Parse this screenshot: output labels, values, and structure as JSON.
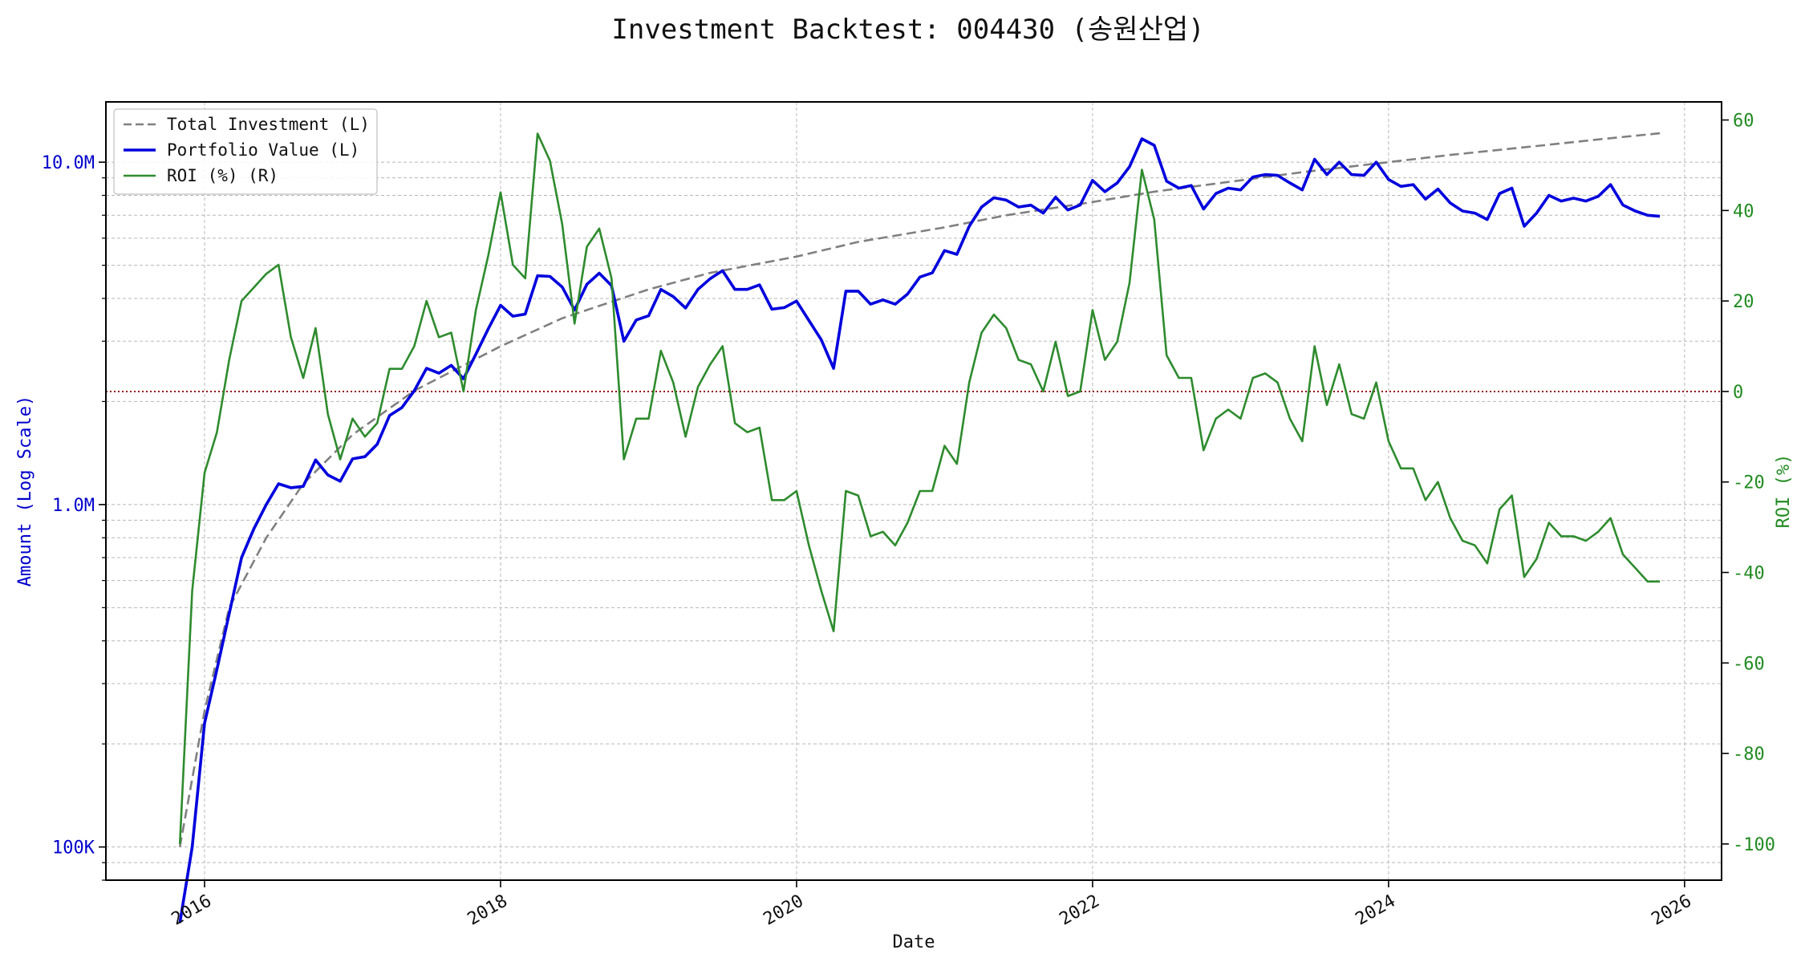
{
  "chart_data": {
    "type": "line",
    "title": "Investment Backtest: 004430 (송원산업)",
    "xlabel": "Date",
    "ylabel_left": "Amount (Log Scale)",
    "ylabel_right": "ROI (%)",
    "y_left_scale": "log",
    "y_left_range": [
      80000,
      15000000
    ],
    "y_left_ticks": [
      {
        "value": 100000,
        "label": "100K"
      },
      {
        "value": 1000000,
        "label": "1.0M"
      },
      {
        "value": 10000000,
        "label": "10.0M"
      }
    ],
    "y_right_range": [
      -108,
      64
    ],
    "y_right_ticks": [
      -100,
      -80,
      -60,
      -40,
      -20,
      0,
      20,
      40,
      60
    ],
    "x_range": [
      "2015-05-01",
      "2026-04-01"
    ],
    "x_ticks": [
      "2016",
      "2018",
      "2020",
      "2022",
      "2024",
      "2026"
    ],
    "grid": true,
    "legend_position": "top-left",
    "zero_reference_line": {
      "axis": "right",
      "value": 0,
      "color": "#8b0000",
      "style": "dotted"
    },
    "colors": {
      "total_investment": "#808080",
      "portfolio_value": "#0000dd",
      "roi": "#2e8b2e",
      "left_axis": "#0000cc",
      "right_axis": "#228b22"
    },
    "series": [
      {
        "name": "Total Investment (L)",
        "axis": "left",
        "style": "dashed",
        "color": "#808080",
        "x": [
          "2015-11",
          "2016-01",
          "2016-03",
          "2016-06",
          "2016-09",
          "2017-01",
          "2017-06",
          "2018-01",
          "2018-06",
          "2019-01",
          "2019-06",
          "2020-01",
          "2020-06",
          "2021-01",
          "2021-06",
          "2022-01",
          "2022-06",
          "2023-01",
          "2023-06",
          "2024-01",
          "2024-06",
          "2025-01",
          "2025-06",
          "2025-11"
        ],
        "values": [
          100000,
          250000,
          500000,
          800000,
          1150000,
          1600000,
          2150000,
          2900000,
          3500000,
          4250000,
          4750000,
          5300000,
          5850000,
          6450000,
          7000000,
          7650000,
          8200000,
          8850000,
          9350000,
          10000000,
          10500000,
          11150000,
          11650000,
          12150000
        ]
      },
      {
        "name": "Portfolio Value (L)",
        "axis": "left",
        "style": "solid",
        "color": "#0000dd",
        "x": [
          "2015-11",
          "2015-12",
          "2016-01",
          "2016-02",
          "2016-03",
          "2016-04",
          "2016-05",
          "2016-06",
          "2016-07",
          "2016-08",
          "2016-09",
          "2016-10",
          "2016-11",
          "2016-12",
          "2017-01",
          "2017-02",
          "2017-03",
          "2017-04",
          "2017-05",
          "2017-06",
          "2017-07",
          "2017-08",
          "2017-09",
          "2017-10",
          "2017-11",
          "2017-12",
          "2018-01",
          "2018-02",
          "2018-03",
          "2018-04",
          "2018-05",
          "2018-06",
          "2018-07",
          "2018-08",
          "2018-09",
          "2018-10",
          "2018-11",
          "2018-12",
          "2019-01",
          "2019-02",
          "2019-03",
          "2019-04",
          "2019-05",
          "2019-06",
          "2019-07",
          "2019-08",
          "2019-09",
          "2019-10",
          "2019-11",
          "2019-12",
          "2020-01",
          "2020-02",
          "2020-03",
          "2020-04",
          "2020-05",
          "2020-06",
          "2020-07",
          "2020-08",
          "2020-09",
          "2020-10",
          "2020-11",
          "2020-12",
          "2021-01",
          "2021-02",
          "2021-03",
          "2021-04",
          "2021-05",
          "2021-06",
          "2021-07",
          "2021-08",
          "2021-09",
          "2021-10",
          "2021-11",
          "2021-12",
          "2022-01",
          "2022-02",
          "2022-03",
          "2022-04",
          "2022-05",
          "2022-06",
          "2022-07",
          "2022-08",
          "2022-09",
          "2022-10",
          "2022-11",
          "2022-12",
          "2023-01",
          "2023-02",
          "2023-03",
          "2023-04",
          "2023-05",
          "2023-06",
          "2023-07",
          "2023-08",
          "2023-09",
          "2023-10",
          "2023-11",
          "2023-12",
          "2024-01",
          "2024-02",
          "2024-03",
          "2024-04",
          "2024-05",
          "2024-06",
          "2024-07",
          "2024-08",
          "2024-09",
          "2024-10",
          "2024-11",
          "2024-12",
          "2025-01",
          "2025-02",
          "2025-03",
          "2025-04",
          "2025-05",
          "2025-06",
          "2025-07",
          "2025-08",
          "2025-09",
          "2025-10",
          "2025-11"
        ],
        "values": [
          60000,
          100000,
          230000,
          330000,
          480000,
          700000,
          850000,
          1000000,
          1150000,
          1120000,
          1130000,
          1350000,
          1220000,
          1170000,
          1360000,
          1380000,
          1500000,
          1820000,
          1920000,
          2150000,
          2500000,
          2420000,
          2550000,
          2330000,
          2750000,
          3260000,
          3820000,
          3550000,
          3600000,
          4660000,
          4640000,
          4320000,
          3700000,
          4400000,
          4740000,
          4360000,
          3000000,
          3460000,
          3560000,
          4250000,
          4050000,
          3750000,
          4250000,
          4570000,
          4820000,
          4250000,
          4250000,
          4380000,
          3720000,
          3760000,
          3930000,
          3450000,
          3030000,
          2500000,
          4200000,
          4200000,
          3850000,
          3960000,
          3850000,
          4120000,
          4620000,
          4750000,
          5520000,
          5380000,
          6500000,
          7400000,
          7870000,
          7750000,
          7400000,
          7490000,
          7100000,
          7900000,
          7250000,
          7500000,
          8850000,
          8200000,
          8700000,
          9700000,
          11700000,
          11200000,
          8800000,
          8400000,
          8550000,
          7300000,
          8100000,
          8400000,
          8300000,
          9050000,
          9200000,
          9150000,
          8700000,
          8300000,
          10200000,
          9200000,
          10000000,
          9200000,
          9150000,
          10000000,
          8900000,
          8500000,
          8600000,
          7800000,
          8350000,
          7600000,
          7200000,
          7100000,
          6800000,
          8100000,
          8400000,
          6500000,
          7100000,
          8000000,
          7700000,
          7850000,
          7700000,
          7950000,
          8600000,
          7500000,
          7200000,
          7000000,
          6950000
        ]
      },
      {
        "name": "ROI (%) (R)",
        "axis": "right",
        "style": "solid",
        "color": "#2e8b2e",
        "x": [
          "2015-11",
          "2015-12",
          "2016-01",
          "2016-02",
          "2016-03",
          "2016-04",
          "2016-05",
          "2016-06",
          "2016-07",
          "2016-08",
          "2016-09",
          "2016-10",
          "2016-11",
          "2016-12",
          "2017-01",
          "2017-02",
          "2017-03",
          "2017-04",
          "2017-05",
          "2017-06",
          "2017-07",
          "2017-08",
          "2017-09",
          "2017-10",
          "2017-11",
          "2017-12",
          "2018-01",
          "2018-02",
          "2018-03",
          "2018-04",
          "2018-05",
          "2018-06",
          "2018-07",
          "2018-08",
          "2018-09",
          "2018-10",
          "2018-11",
          "2018-12",
          "2019-01",
          "2019-02",
          "2019-03",
          "2019-04",
          "2019-05",
          "2019-06",
          "2019-07",
          "2019-08",
          "2019-09",
          "2019-10",
          "2019-11",
          "2019-12",
          "2020-01",
          "2020-02",
          "2020-03",
          "2020-04",
          "2020-05",
          "2020-06",
          "2020-07",
          "2020-08",
          "2020-09",
          "2020-10",
          "2020-11",
          "2020-12",
          "2021-01",
          "2021-02",
          "2021-03",
          "2021-04",
          "2021-05",
          "2021-06",
          "2021-07",
          "2021-08",
          "2021-09",
          "2021-10",
          "2021-11",
          "2021-12",
          "2022-01",
          "2022-02",
          "2022-03",
          "2022-04",
          "2022-05",
          "2022-06",
          "2022-07",
          "2022-08",
          "2022-09",
          "2022-10",
          "2022-11",
          "2022-12",
          "2023-01",
          "2023-02",
          "2023-03",
          "2023-04",
          "2023-05",
          "2023-06",
          "2023-07",
          "2023-08",
          "2023-09",
          "2023-10",
          "2023-11",
          "2023-12",
          "2024-01",
          "2024-02",
          "2024-03",
          "2024-04",
          "2024-05",
          "2024-06",
          "2024-07",
          "2024-08",
          "2024-09",
          "2024-10",
          "2024-11",
          "2024-12",
          "2025-01",
          "2025-02",
          "2025-03",
          "2025-04",
          "2025-05",
          "2025-06",
          "2025-07",
          "2025-08",
          "2025-09",
          "2025-10",
          "2025-11"
        ],
        "values": [
          -100,
          -44,
          -18,
          -9,
          7,
          20,
          23,
          26,
          28,
          12,
          3,
          14,
          -5,
          -15,
          -6,
          -10,
          -7,
          5,
          5,
          10,
          20,
          12,
          13,
          0,
          18,
          30,
          44,
          28,
          25,
          57,
          51,
          37,
          15,
          32,
          36,
          25,
          -15,
          -6,
          -6,
          9,
          2,
          -10,
          1,
          6,
          10,
          -7,
          -9,
          -8,
          -24,
          -24,
          -22,
          -34,
          -44,
          -53,
          -22,
          -23,
          -32,
          -31,
          -34,
          -29,
          -22,
          -22,
          -12,
          -16,
          2,
          13,
          17,
          14,
          7,
          6,
          0,
          11,
          -1,
          0,
          18,
          7,
          11,
          24,
          49,
          38,
          8,
          3,
          3,
          -13,
          -6,
          -4,
          -6,
          3,
          4,
          2,
          -6,
          -11,
          10,
          -3,
          6,
          -5,
          -6,
          2,
          -11,
          -17,
          -17,
          -24,
          -20,
          -28,
          -33,
          -34,
          -38,
          -26,
          -23,
          -41,
          -37,
          -29,
          -32,
          -32,
          -33,
          -31,
          -28,
          -36,
          -39,
          -42,
          -42
        ]
      }
    ]
  }
}
